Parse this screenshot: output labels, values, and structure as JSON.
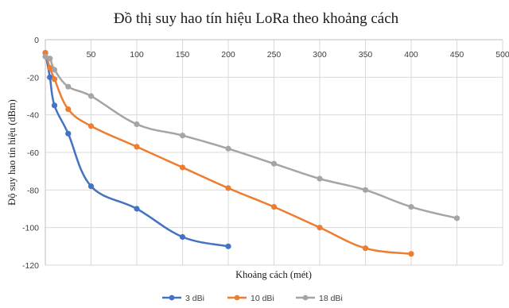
{
  "chart_data": {
    "type": "line",
    "title": "Đồ thị suy hao tín hiệu LoRa theo khoảng cách",
    "xlabel": "Khoảng cách (mét)",
    "ylabel": "Độ suy hao tín hiệu (dBm)",
    "xlim": [
      0,
      500
    ],
    "ylim": [
      -120,
      0
    ],
    "x_ticks": [
      "0",
      "50",
      "100",
      "150",
      "200",
      "250",
      "300",
      "350",
      "400",
      "450",
      "500"
    ],
    "y_ticks": [
      "0",
      "-20",
      "-40",
      "-60",
      "-80",
      "-100",
      "-120"
    ],
    "grid": true,
    "legend_position": "bottom",
    "series": [
      {
        "name": "3 dBi",
        "color": "#4472c4",
        "x": [
          0,
          5,
          10,
          25,
          50,
          100,
          150,
          200
        ],
        "y": [
          -7,
          -20,
          -35,
          -50,
          -78,
          -90,
          -105,
          -110
        ]
      },
      {
        "name": "10 dBi",
        "color": "#ed7d31",
        "x": [
          0,
          5,
          10,
          25,
          50,
          100,
          150,
          200,
          250,
          300,
          350,
          400
        ],
        "y": [
          -7,
          -15,
          -21,
          -37,
          -46,
          -57,
          -68,
          -79,
          -89,
          -100,
          -111,
          -114
        ]
      },
      {
        "name": "18 dBi",
        "color": "#a5a5a5",
        "x": [
          0,
          5,
          10,
          25,
          50,
          100,
          150,
          200,
          250,
          300,
          350,
          400,
          450
        ],
        "y": [
          -9,
          -10,
          -16,
          -25,
          -30,
          -45,
          -51,
          -58,
          -66,
          -74,
          -80,
          -89,
          -95
        ]
      }
    ]
  }
}
